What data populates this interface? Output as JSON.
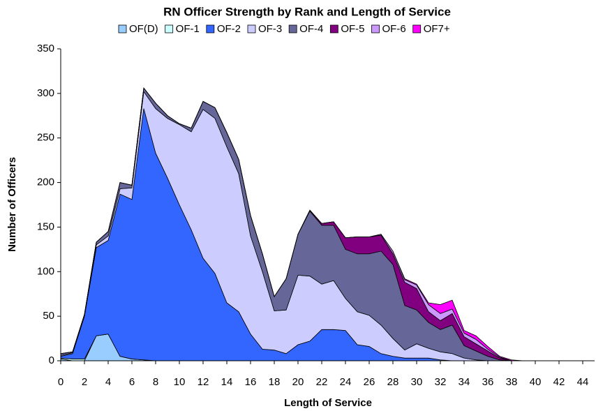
{
  "chart_data": {
    "type": "stacked_area",
    "title": "RN Officer Strength by Rank and Length of Service",
    "x_label": "Length of Service",
    "y_label": "Number of Officers",
    "x": [
      0,
      1,
      2,
      3,
      4,
      5,
      6,
      7,
      8,
      9,
      10,
      11,
      12,
      13,
      14,
      15,
      16,
      17,
      18,
      19,
      20,
      21,
      22,
      23,
      24,
      25,
      26,
      27,
      28,
      29,
      30,
      31,
      32,
      33,
      34,
      35,
      36,
      37,
      38,
      39,
      40,
      41,
      42,
      43,
      44,
      45
    ],
    "xlim": [
      0,
      45
    ],
    "xticks": [
      0,
      2,
      4,
      6,
      8,
      10,
      12,
      14,
      16,
      18,
      20,
      22,
      24,
      26,
      28,
      30,
      32,
      34,
      36,
      38,
      40,
      42,
      44
    ],
    "ylim": [
      0,
      350
    ],
    "yticks": [
      0,
      50,
      100,
      150,
      200,
      250,
      300,
      350
    ],
    "grid": false,
    "legend": "top",
    "series": [
      {
        "name": "OF(D)",
        "color": "#99ccff",
        "values": [
          2,
          0,
          0,
          28,
          30,
          5,
          2,
          1,
          0,
          0,
          0,
          0,
          0,
          0,
          0,
          0,
          0,
          0,
          0,
          0,
          0,
          0,
          0,
          0,
          0,
          0,
          0,
          0,
          0,
          0,
          0,
          0,
          0,
          0,
          0,
          0,
          0,
          0,
          0,
          0,
          0,
          0,
          0,
          0,
          0,
          0
        ]
      },
      {
        "name": "OF-1",
        "color": "#ccffff",
        "values": [
          1,
          2,
          2,
          0,
          0,
          0,
          0,
          0,
          0,
          0,
          0,
          0,
          0,
          0,
          0,
          0,
          0,
          0,
          0,
          0,
          0,
          0,
          0,
          0,
          0,
          0,
          0,
          0,
          0,
          0,
          0,
          0,
          0,
          0,
          0,
          0,
          0,
          0,
          0,
          0,
          0,
          0,
          0,
          0,
          0,
          0
        ]
      },
      {
        "name": "OF-2",
        "color": "#3366ff",
        "values": [
          2,
          6,
          48,
          99,
          105,
          182,
          179,
          282,
          233,
          205,
          175,
          147,
          115,
          98,
          65,
          55,
          30,
          13,
          12,
          8,
          18,
          22,
          35,
          35,
          34,
          18,
          16,
          8,
          5,
          3,
          3,
          3,
          1,
          0,
          0,
          0,
          0,
          0,
          0,
          0,
          0,
          0,
          0,
          0,
          0,
          0
        ]
      },
      {
        "name": "OF-3",
        "color": "#ccccff",
        "values": [
          1,
          1,
          1,
          3,
          5,
          6,
          13,
          19,
          50,
          67,
          90,
          110,
          167,
          174,
          175,
          155,
          110,
          87,
          44,
          49,
          78,
          73,
          51,
          55,
          36,
          37,
          35,
          32,
          20,
          9,
          16,
          11,
          9,
          8,
          3,
          1,
          0,
          0,
          0,
          0,
          0,
          0,
          0,
          0,
          0,
          0
        ]
      },
      {
        "name": "OF-4",
        "color": "#666699",
        "values": [
          2,
          1,
          1,
          3,
          5,
          7,
          3,
          4,
          6,
          3,
          1,
          4,
          9,
          12,
          16,
          16,
          23,
          20,
          16,
          35,
          46,
          73,
          66,
          62,
          55,
          65,
          69,
          83,
          83,
          50,
          38,
          29,
          25,
          32,
          14,
          10,
          5,
          1,
          0,
          0,
          0,
          0,
          0,
          0,
          0,
          0
        ]
      },
      {
        "name": "OF-5",
        "color": "#800080",
        "values": [
          0,
          0,
          0,
          0,
          0,
          0,
          0,
          0,
          0,
          0,
          0,
          0,
          0,
          0,
          0,
          0,
          0,
          0,
          0,
          0,
          0,
          1,
          2,
          4,
          13,
          19,
          19,
          18,
          12,
          26,
          24,
          12,
          10,
          13,
          10,
          8,
          6,
          2,
          0,
          0,
          0,
          0,
          0,
          0,
          0,
          0
        ]
      },
      {
        "name": "OF-6",
        "color": "#cc99ff",
        "values": [
          0,
          0,
          0,
          0,
          0,
          0,
          0,
          0,
          0,
          0,
          0,
          0,
          0,
          0,
          0,
          0,
          0,
          0,
          0,
          0,
          0,
          0,
          0,
          0,
          0,
          0,
          0,
          1,
          3,
          3,
          4,
          8,
          8,
          5,
          4,
          5,
          2,
          1,
          0,
          0,
          0,
          0,
          0,
          0,
          0,
          0
        ]
      },
      {
        "name": "OF7+",
        "color": "#ff00ff",
        "values": [
          0,
          0,
          0,
          0,
          0,
          0,
          0,
          0,
          0,
          0,
          0,
          0,
          0,
          0,
          0,
          0,
          0,
          0,
          0,
          0,
          0,
          0,
          0,
          0,
          0,
          0,
          0,
          0,
          0,
          1,
          1,
          2,
          10,
          10,
          3,
          4,
          3,
          1,
          1,
          0,
          0,
          0,
          0,
          0,
          0,
          0
        ]
      }
    ]
  }
}
